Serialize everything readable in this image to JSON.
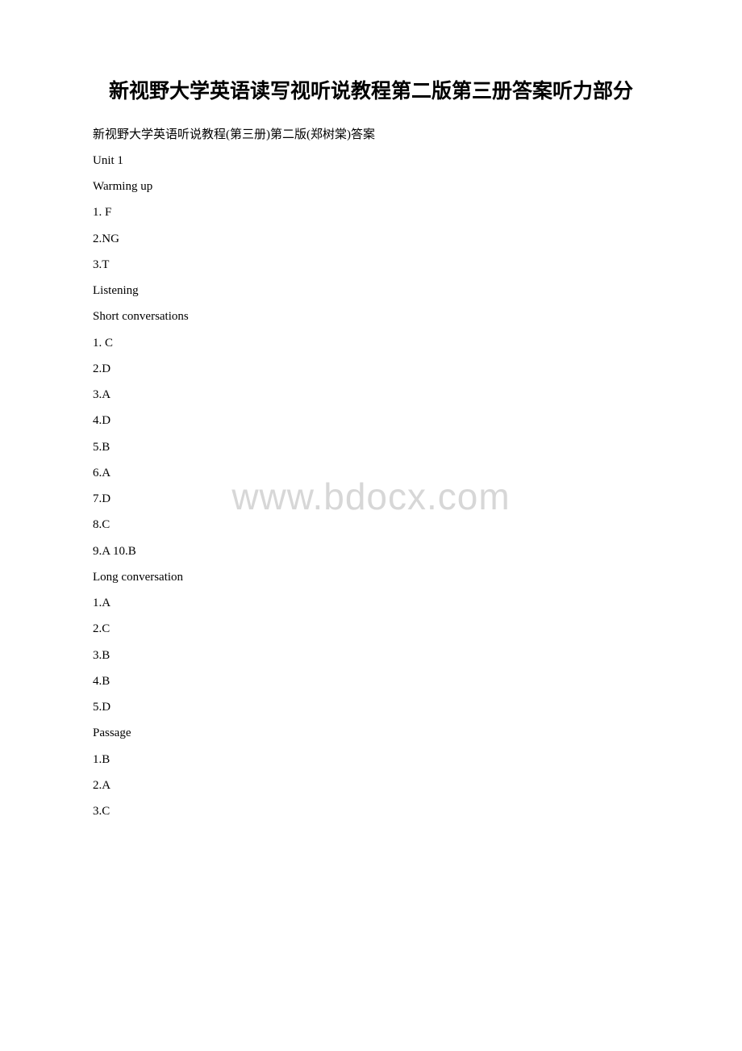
{
  "title": "新视野大学英语读写视听说教程第二版第三册答案听力部分",
  "watermark": "www.bdocx.com",
  "lines": [
    "新视野大学英语听说教程(第三册)第二版(郑树棠)答案",
    "Unit 1",
    "Warming up",
    "1. F",
    "2.NG",
    "3.T",
    "Listening",
    "Short conversations",
    "1. C",
    "2.D",
    "3.A",
    "4.D",
    "5.B",
    "6.A",
    "7.D",
    "8.C",
    "9.A 10.B",
    "Long conversation",
    "1.A",
    "2.C",
    "3.B",
    "4.B",
    "5.D",
    "Passage",
    "1.B",
    "2.A",
    "3.C"
  ],
  "colors": {
    "background": "#ffffff",
    "text": "#000000",
    "watermark": "#d7d7d7"
  },
  "typography": {
    "title_fontsize": 25,
    "title_weight": "bold",
    "body_fontsize": 15,
    "watermark_fontsize": 46,
    "line_height": 2.15
  }
}
